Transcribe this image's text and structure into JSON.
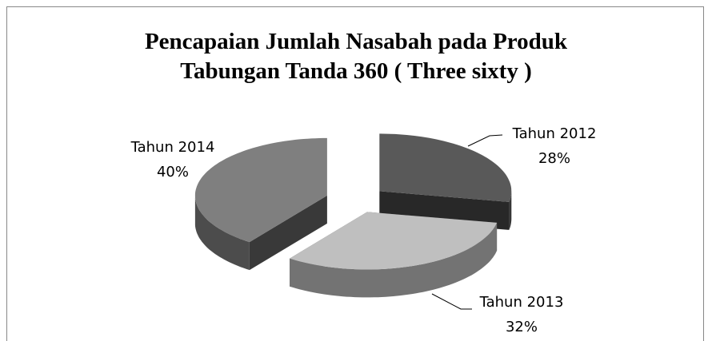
{
  "chart_data": {
    "type": "pie",
    "title": "Pencapaian Jumlah Nasabah pada Produk Tabungan Tanda 360 ( Three sixty )",
    "categories": [
      "Tahun 2012",
      "Tahun 2013",
      "Tahun 2014"
    ],
    "values": [
      28,
      32,
      40
    ],
    "value_labels": [
      "28%",
      "32%",
      "40%"
    ],
    "colors": [
      "#595959",
      "#bfbfbf",
      "#7f7f7f"
    ],
    "three_d": true,
    "exploded": true
  }
}
